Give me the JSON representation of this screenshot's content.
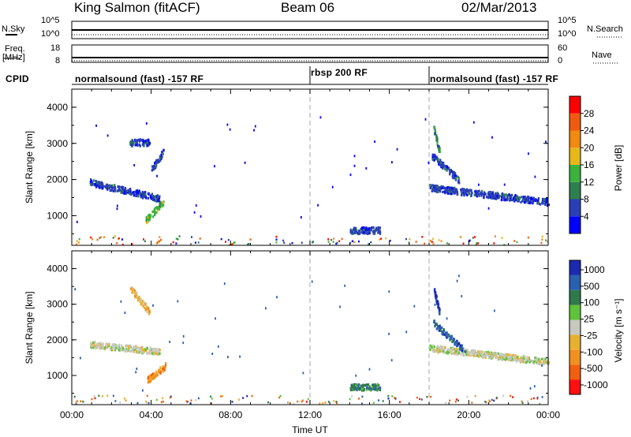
{
  "header": {
    "station": "King Salmon (fitACF)",
    "beam": "Beam 06",
    "date": "02/Mar/2013"
  },
  "strip1": {
    "left_label": "N.Sky",
    "right_label": "N.Search",
    "left_ticks": [
      "10^5",
      "10^0"
    ],
    "right_ticks": [
      "10^5",
      "10^0"
    ]
  },
  "strip2": {
    "left_label_1": "Freq.",
    "left_label_2": "[MHz]",
    "right_label": "Nave",
    "left_ticks": [
      "18",
      "8"
    ],
    "right_ticks": [
      "60",
      "0"
    ]
  },
  "cpid": {
    "label": "CPID",
    "segments": [
      {
        "text": "normalsound (fast) -157 RF",
        "start": 0,
        "end": 12
      },
      {
        "text": "rbsp 200 RF",
        "start": 12,
        "end": 18
      },
      {
        "text": "normalsound (fast) -157 RF",
        "start": 18,
        "end": 24
      }
    ]
  },
  "colors": {
    "power_scale": [
      "#0000ff",
      "#2a3fb6",
      "#2e7f4f",
      "#3cb23c",
      "#e6b81a",
      "#f08a10",
      "#f05a10",
      "#ff0000"
    ],
    "velocity_scale": [
      "#1c2ab0",
      "#2a60b0",
      "#2e7a4a",
      "#5ec33a",
      "#c8c8c0",
      "#e8b030",
      "#f09020",
      "#f06010",
      "#ff1010"
    ],
    "dashed_line": "#b8b8b8"
  },
  "chart_data": [
    {
      "type": "heatmap",
      "title": "Power",
      "xlabel": "",
      "ylabel": "Slant Range [km]",
      "x_ticks": [
        "00:00",
        "04:00",
        "08:00",
        "12:00",
        "16:00",
        "20:00",
        "00:00"
      ],
      "y_ticks": [
        "1000",
        "2000",
        "3000",
        "4000"
      ],
      "xlim": [
        0,
        24
      ],
      "ylim": [
        180,
        4500
      ],
      "colorbar_label": "Power [dB]",
      "colorbar_ticks": [
        "4",
        "8",
        "12",
        "16",
        "20",
        "24",
        "28"
      ],
      "features": [
        {
          "t0": 0.9,
          "t1": 4.4,
          "r0": 1950,
          "r1": 1500,
          "level": 1
        },
        {
          "t0": 2.9,
          "t1": 3.9,
          "r0": 3050,
          "r1": 3050,
          "level": 1
        },
        {
          "t0": 3.7,
          "t1": 4.6,
          "r0": 900,
          "r1": 1400,
          "level": 3
        },
        {
          "t0": 4.0,
          "t1": 4.6,
          "r0": 2300,
          "r1": 2800,
          "level": 1
        },
        {
          "t0": 14.0,
          "t1": 15.5,
          "r0": 620,
          "r1": 620,
          "level": 1
        },
        {
          "t0": 18.0,
          "t1": 24.0,
          "r0": 1800,
          "r1": 1400,
          "level": 1
        },
        {
          "t0": 18.1,
          "t1": 19.5,
          "r0": 2700,
          "r1": 2000,
          "level": 1
        },
        {
          "t0": 18.2,
          "t1": 18.5,
          "r0": 3500,
          "r1": 2800,
          "level": 2
        }
      ]
    },
    {
      "type": "heatmap",
      "title": "Velocity",
      "xlabel": "Time UT",
      "ylabel": "Slant Range [km]",
      "x_ticks": [
        "00:00",
        "04:00",
        "08:00",
        "12:00",
        "16:00",
        "20:00",
        "00:00"
      ],
      "y_ticks": [
        "1000",
        "2000",
        "3000",
        "4000"
      ],
      "xlim": [
        0,
        24
      ],
      "ylim": [
        180,
        4500
      ],
      "colorbar_label": "Velocity [m s⁻¹]",
      "colorbar_ticks": [
        "1000",
        "500",
        "100",
        "25",
        "-25",
        "-100",
        "-500",
        "-1000"
      ],
      "features": [
        {
          "t0": 0.9,
          "t1": 4.4,
          "r0": 1900,
          "r1": 1700,
          "level": 4
        },
        {
          "t0": 2.9,
          "t1": 3.9,
          "r0": 3500,
          "r1": 2800,
          "level": 5
        },
        {
          "t0": 3.8,
          "t1": 4.7,
          "r0": 900,
          "r1": 1300,
          "level": 6
        },
        {
          "t0": 14.0,
          "t1": 15.5,
          "r0": 700,
          "r1": 700,
          "level": 2
        },
        {
          "t0": 18.0,
          "t1": 24.0,
          "r0": 1800,
          "r1": 1400,
          "level": 4
        },
        {
          "t0": 18.2,
          "t1": 19.8,
          "r0": 2500,
          "r1": 1700,
          "level": 1
        },
        {
          "t0": 18.2,
          "t1": 18.5,
          "r0": 3500,
          "r1": 2800,
          "level": 0
        }
      ]
    }
  ]
}
